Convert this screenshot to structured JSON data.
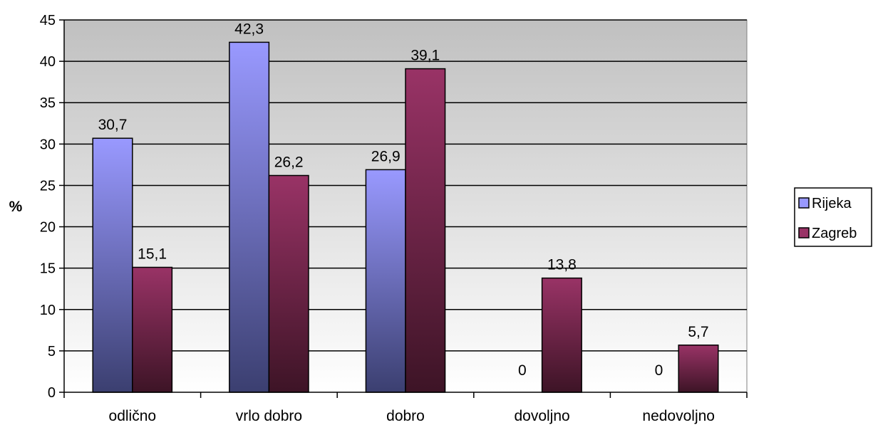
{
  "chart_data": {
    "type": "bar",
    "ylabel": "%",
    "xlabel": "",
    "title": "",
    "ylim": [
      0,
      45
    ],
    "yticks": [
      0,
      5,
      10,
      15,
      20,
      25,
      30,
      35,
      40,
      45
    ],
    "grid": true,
    "legend_position": "right",
    "categories": [
      "odlično",
      "vrlo dobro",
      "dobro",
      "dovoljno",
      "nedovoljno"
    ],
    "series": [
      {
        "name": "Rijeka",
        "values": [
          30.7,
          42.3,
          26.9,
          0,
          0
        ],
        "labels": [
          "30,7",
          "42,3",
          "26,9",
          "0",
          "0"
        ],
        "color": "#9999ff"
      },
      {
        "name": "Zagreb",
        "values": [
          15.1,
          26.2,
          39.1,
          13.8,
          5.7
        ],
        "labels": [
          "15,1",
          "26,2",
          "39,1",
          "13,8",
          "5,7"
        ],
        "color": "#993366"
      }
    ]
  }
}
